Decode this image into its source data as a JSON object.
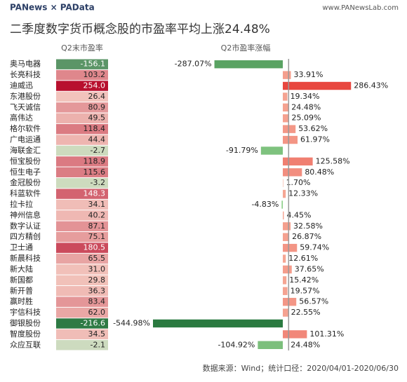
{
  "chart_data": {
    "type": "bar",
    "brand": "PANews × PAData",
    "url": "www.PANewsLab.com",
    "title": "二季度数字货币概念股的市盈率平均上涨24.48%",
    "source": "数据来源：Wind；统计口径：2020/04/01-2020/06/30",
    "categories": [
      "奥马电器",
      "长亮科技",
      "迪威迅",
      "东港股份",
      "飞天诚信",
      "高伟达",
      "格尔软件",
      "广电运通",
      "海联金汇",
      "恒宝股份",
      "恒生电子",
      "金冠股份",
      "科蓝软件",
      "拉卡拉",
      "神州信息",
      "数字认证",
      "四方精创",
      "卫士通",
      "新晨科技",
      "新大陆",
      "新国都",
      "新开普",
      "赢时胜",
      "宇信科技",
      "御银股份",
      "智度股份",
      "众应互联"
    ],
    "series": [
      {
        "name": "Q2末市盈率",
        "colors": {
          "negative": "#2e7a44",
          "zero": "#f9d8cc",
          "positive": "#b8102e",
          "low_negative": "#cfdcc0"
        },
        "values": [
          -156.1,
          103.2,
          254.0,
          26.4,
          80.9,
          49.5,
          118.4,
          44.4,
          -2.7,
          118.9,
          115.6,
          -3.2,
          148.3,
          34.1,
          40.2,
          87.1,
          75.1,
          180.5,
          65.5,
          31.0,
          29.8,
          36.3,
          83.4,
          62.0,
          -216.6,
          34.5,
          -2.1
        ],
        "value_labels": [
          "-156.1",
          "103.2",
          "254.0",
          "26.4",
          "80.9",
          "49.5",
          "118.4",
          "44.4",
          "-2.7",
          "118.9",
          "115.6",
          "-3.2",
          "148.3",
          "34.1",
          "40.2",
          "87.1",
          "75.1",
          "180.5",
          "65.5",
          "31.0",
          "29.8",
          "36.3",
          "83.4",
          "62.0",
          "-216.6",
          "34.5",
          "-2.1"
        ]
      },
      {
        "name": "Q2市盈率涨幅",
        "colors": {
          "negative": "#2a7a40",
          "low_negative": "#8fd08a",
          "positive": "#e8473f",
          "low_positive": "#f6aa98"
        },
        "values": [
          -287.07,
          33.91,
          286.43,
          19.34,
          24.48,
          25.09,
          53.62,
          61.97,
          -91.79,
          125.58,
          80.48,
          1.7,
          12.33,
          -4.83,
          4.45,
          32.58,
          26.87,
          59.74,
          12.61,
          37.65,
          15.42,
          19.57,
          56.57,
          22.55,
          -544.98,
          101.31,
          -104.92
        ],
        "value_labels": [
          "-287.07%",
          "33.91%",
          "286.43%",
          "19.34%",
          "24.48%",
          "25.09%",
          "53.62%",
          "61.97%",
          "-91.79%",
          "125.58%",
          "80.48%",
          "1.70%",
          "12.33%",
          "-4.83%",
          "4.45%",
          "32.58%",
          "26.87%",
          "59.74%",
          "12.61%",
          "37.65%",
          "15.42%",
          "19.57%",
          "56.57%",
          "22.55%",
          "-544.98%",
          "101.31%",
          "-104.92%"
        ]
      }
    ],
    "average": {
      "value": 24.48,
      "label": "24.48%"
    }
  }
}
